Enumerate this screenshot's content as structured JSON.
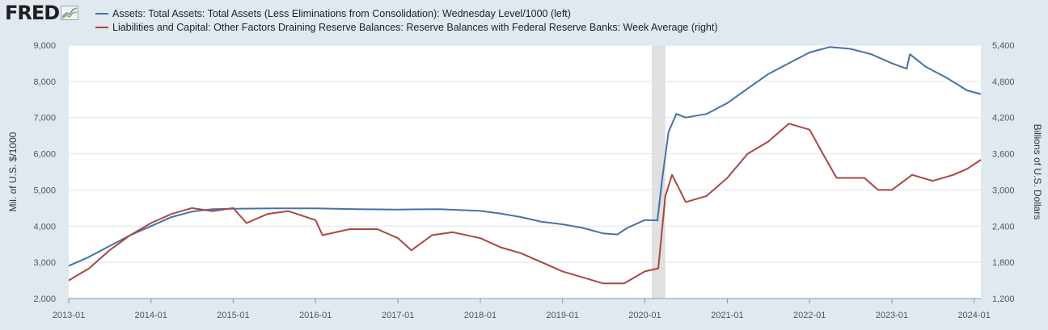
{
  "header": {
    "logo_text": "FRED",
    "logo_icon": "fred-chart-icon"
  },
  "colors": {
    "series_blue": "#4572a7",
    "series_red": "#aa4643",
    "recession": "#e0e0e0",
    "grid": "#dde3ea",
    "background": "#e1e9f0"
  },
  "chart_data": {
    "type": "line",
    "xlabel": "",
    "x_ticks": [
      "2013-01",
      "2014-01",
      "2015-01",
      "2016-01",
      "2017-01",
      "2018-01",
      "2019-01",
      "2020-01",
      "2021-01",
      "2022-01",
      "2023-01",
      "2024-01"
    ],
    "x_range": [
      "2013-01-01",
      "2024-01-31"
    ],
    "recession_shading": [
      {
        "start": "2020-02",
        "end": "2020-04"
      }
    ],
    "y_left": {
      "label": "Mil. of U.S. $/1000",
      "ylim": [
        2000,
        9000
      ],
      "ticks": [
        "2,000",
        "3,000",
        "4,000",
        "5,000",
        "6,000",
        "7,000",
        "8,000",
        "9,000"
      ]
    },
    "y_right": {
      "label": "Billions of U.S. Dollars",
      "ylim": [
        1200,
        5400
      ],
      "ticks": [
        "1,200",
        "1,800",
        "2,400",
        "3,000",
        "3,600",
        "4,200",
        "4,800",
        "5,400"
      ]
    },
    "grid": true,
    "legend_position": "top-left",
    "series": [
      {
        "name": "Assets: Total Assets: Total Assets (Less Eliminations from Consolidation): Wednesday Level/1000 (left)",
        "axis": "left",
        "color": "#4572a7",
        "points": [
          [
            "2013-01-01",
            2900
          ],
          [
            "2013-04-01",
            3150
          ],
          [
            "2013-07-01",
            3450
          ],
          [
            "2013-10-01",
            3750
          ],
          [
            "2014-01-01",
            4000
          ],
          [
            "2014-04-01",
            4250
          ],
          [
            "2014-07-01",
            4400
          ],
          [
            "2014-10-01",
            4470
          ],
          [
            "2015-01-01",
            4480
          ],
          [
            "2015-07-01",
            4490
          ],
          [
            "2016-01-01",
            4490
          ],
          [
            "2016-07-01",
            4470
          ],
          [
            "2017-01-01",
            4460
          ],
          [
            "2017-07-01",
            4470
          ],
          [
            "2018-01-01",
            4420
          ],
          [
            "2018-04-01",
            4350
          ],
          [
            "2018-07-01",
            4250
          ],
          [
            "2018-10-01",
            4120
          ],
          [
            "2019-01-01",
            4050
          ],
          [
            "2019-04-01",
            3950
          ],
          [
            "2019-07-01",
            3800
          ],
          [
            "2019-09-01",
            3770
          ],
          [
            "2019-10-15",
            3950
          ],
          [
            "2020-01-01",
            4170
          ],
          [
            "2020-02-26",
            4160
          ],
          [
            "2020-03-18",
            5300
          ],
          [
            "2020-04-15",
            6600
          ],
          [
            "2020-05-20",
            7100
          ],
          [
            "2020-07-01",
            7000
          ],
          [
            "2020-10-01",
            7100
          ],
          [
            "2021-01-01",
            7400
          ],
          [
            "2021-04-01",
            7800
          ],
          [
            "2021-07-01",
            8200
          ],
          [
            "2021-10-01",
            8500
          ],
          [
            "2022-01-01",
            8800
          ],
          [
            "2022-04-01",
            8950
          ],
          [
            "2022-07-01",
            8900
          ],
          [
            "2022-10-01",
            8750
          ],
          [
            "2023-01-01",
            8500
          ],
          [
            "2023-03-08",
            8350
          ],
          [
            "2023-03-22",
            8750
          ],
          [
            "2023-06-01",
            8400
          ],
          [
            "2023-09-01",
            8100
          ],
          [
            "2023-12-01",
            7750
          ],
          [
            "2024-01-31",
            7650
          ]
        ]
      },
      {
        "name": "Liabilities and Capital: Other Factors Draining Reserve Balances: Reserve Balances with Federal Reserve Banks: Week Average (right)",
        "axis": "right",
        "color": "#aa4643",
        "points": [
          [
            "2013-01-01",
            1500
          ],
          [
            "2013-04-01",
            1700
          ],
          [
            "2013-07-01",
            2000
          ],
          [
            "2013-10-01",
            2250
          ],
          [
            "2014-01-01",
            2450
          ],
          [
            "2014-04-01",
            2600
          ],
          [
            "2014-07-01",
            2700
          ],
          [
            "2014-10-01",
            2650
          ],
          [
            "2015-01-01",
            2700
          ],
          [
            "2015-03-01",
            2450
          ],
          [
            "2015-06-01",
            2600
          ],
          [
            "2015-09-01",
            2650
          ],
          [
            "2016-01-01",
            2500
          ],
          [
            "2016-02-01",
            2250
          ],
          [
            "2016-06-01",
            2350
          ],
          [
            "2016-10-01",
            2350
          ],
          [
            "2017-01-01",
            2200
          ],
          [
            "2017-03-01",
            2000
          ],
          [
            "2017-06-01",
            2250
          ],
          [
            "2017-09-01",
            2300
          ],
          [
            "2018-01-01",
            2200
          ],
          [
            "2018-04-01",
            2050
          ],
          [
            "2018-07-01",
            1950
          ],
          [
            "2018-10-01",
            1800
          ],
          [
            "2019-01-01",
            1650
          ],
          [
            "2019-04-01",
            1550
          ],
          [
            "2019-07-01",
            1450
          ],
          [
            "2019-10-01",
            1450
          ],
          [
            "2020-01-01",
            1650
          ],
          [
            "2020-03-01",
            1700
          ],
          [
            "2020-04-01",
            2900
          ],
          [
            "2020-05-01",
            3250
          ],
          [
            "2020-07-01",
            2800
          ],
          [
            "2020-10-01",
            2900
          ],
          [
            "2021-01-01",
            3200
          ],
          [
            "2021-04-01",
            3600
          ],
          [
            "2021-07-01",
            3800
          ],
          [
            "2021-10-01",
            4100
          ],
          [
            "2022-01-01",
            4000
          ],
          [
            "2022-03-01",
            3600
          ],
          [
            "2022-05-01",
            3200
          ],
          [
            "2022-09-01",
            3200
          ],
          [
            "2022-11-01",
            3000
          ],
          [
            "2023-01-01",
            3000
          ],
          [
            "2023-04-01",
            3250
          ],
          [
            "2023-07-01",
            3150
          ],
          [
            "2023-10-01",
            3250
          ],
          [
            "2023-12-01",
            3350
          ],
          [
            "2024-01-31",
            3500
          ]
        ]
      }
    ]
  }
}
